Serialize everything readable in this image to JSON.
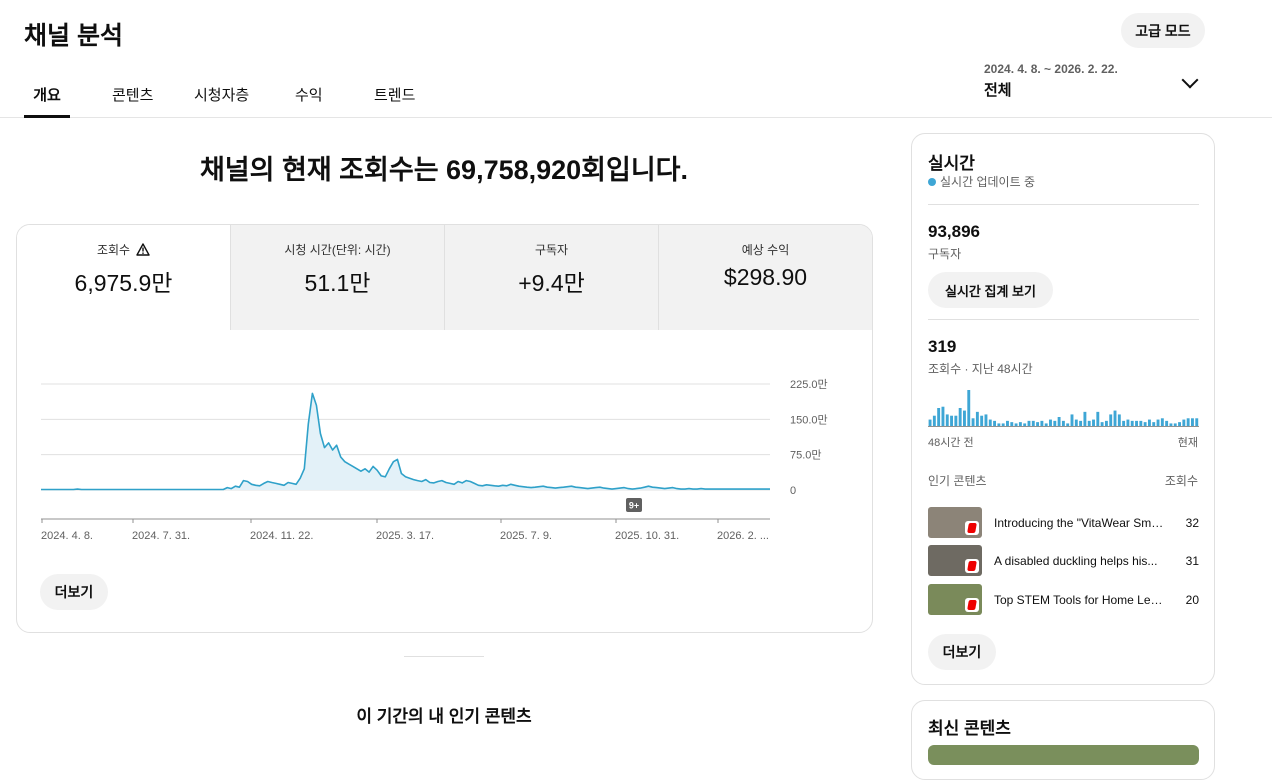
{
  "header": {
    "title": "채널 분석",
    "advanced_mode": "고급 모드",
    "tabs": [
      "개요",
      "콘텐츠",
      "시청자층",
      "수익",
      "트렌드"
    ],
    "date_range": "2024. 4. 8. ~ 2026. 2. 22.",
    "date_value": "전체"
  },
  "main": {
    "headline": "채널의 현재 조회수는 69,758,920회입니다.",
    "metrics": [
      {
        "label": "조회수",
        "value": "6,975.9만",
        "icon": "warning-icon"
      },
      {
        "label": "시청 시간(단위: 시간)",
        "value": "51.1만"
      },
      {
        "label": "구독자",
        "value": "+9.4만"
      },
      {
        "label": "예상 수익",
        "value": "$298.90"
      }
    ],
    "more": "더보기",
    "popular_title": "이 기간의 내 인기 콘텐츠"
  },
  "chart_data": {
    "type": "area",
    "x_ticks": [
      "2024. 4. 8.",
      "2024. 7. 31.",
      "2024. 11. 22.",
      "2025. 3. 17.",
      "2025. 7. 9.",
      "2025. 10. 31.",
      "2026. 2. ..."
    ],
    "y_ticks": [
      "225.0만",
      "150.0만",
      "75.0만",
      "0"
    ],
    "ylim": [
      0,
      225
    ],
    "badge": "9+",
    "color": "#2fa1c9",
    "values": [
      1,
      1,
      1,
      1,
      1,
      1,
      1,
      1,
      1,
      2,
      1,
      1,
      1,
      1,
      1,
      1,
      1,
      1,
      1,
      1,
      1,
      1,
      1,
      1,
      1,
      1,
      1,
      1,
      1,
      1,
      1,
      1,
      1,
      1,
      1,
      1,
      1,
      1,
      1,
      1,
      1,
      1,
      1,
      1,
      1,
      1,
      5,
      3,
      8,
      6,
      20,
      18,
      12,
      10,
      9,
      14,
      18,
      16,
      14,
      12,
      10,
      16,
      14,
      12,
      25,
      45,
      140,
      205,
      180,
      120,
      90,
      100,
      85,
      95,
      70,
      60,
      55,
      50,
      45,
      40,
      45,
      38,
      50,
      42,
      30,
      28,
      45,
      60,
      65,
      35,
      28,
      25,
      22,
      20,
      18,
      22,
      16,
      15,
      18,
      20,
      16,
      14,
      12,
      18,
      15,
      20,
      18,
      14,
      10,
      9,
      11,
      10,
      9,
      8,
      10,
      9,
      12,
      10,
      8,
      7,
      6,
      5,
      6,
      7,
      8,
      6,
      5,
      4,
      5,
      6,
      7,
      8,
      6,
      5,
      4,
      3,
      4,
      5,
      6,
      4,
      3,
      2,
      3,
      4,
      5,
      3,
      2,
      3,
      4,
      6,
      8,
      6,
      5,
      4,
      3,
      4,
      5,
      3,
      2,
      2,
      3,
      2,
      2,
      3,
      2,
      2,
      2,
      2,
      2,
      2,
      2,
      2,
      2,
      2,
      2,
      2,
      2,
      2,
      2,
      2,
      2
    ]
  },
  "side": {
    "title": "실시간",
    "live_label": "실시간 업데이트 중",
    "subscribers": "93,896",
    "subscribers_label": "구독자",
    "realtime_button": "실시간 집계 보기",
    "views48": "319",
    "views48_label": "조회수 · 지난 48시간",
    "bar_values": [
      5,
      8,
      14,
      15,
      9,
      8,
      8,
      14,
      12,
      28,
      6,
      11,
      8,
      9,
      5,
      4,
      2,
      2,
      4,
      3,
      2,
      3,
      2,
      4,
      4,
      3,
      4,
      2,
      5,
      4,
      7,
      4,
      2,
      9,
      5,
      4,
      11,
      4,
      5,
      11,
      3,
      4,
      9,
      12,
      9,
      4,
      5,
      4,
      4,
      4,
      3,
      5,
      3,
      5,
      6,
      4,
      2,
      2,
      3,
      5,
      6,
      6,
      6
    ],
    "axis_left": "48시간 전",
    "axis_right": "현재",
    "popular_head": "인기 콘텐츠",
    "popular_head_right": "조회수",
    "items": [
      {
        "title": "Introducing the \"VitaWear Smart...",
        "count": "32",
        "thumb_color": "#8c8478"
      },
      {
        "title": "A disabled duckling helps his...",
        "count": "31",
        "thumb_color": "#6e6a62"
      },
      {
        "title": "Top STEM Tools for Home Learning",
        "count": "20",
        "thumb_color": "#7a8a5a"
      }
    ],
    "more": "더보기",
    "latest_title": "최신 콘텐츠"
  }
}
